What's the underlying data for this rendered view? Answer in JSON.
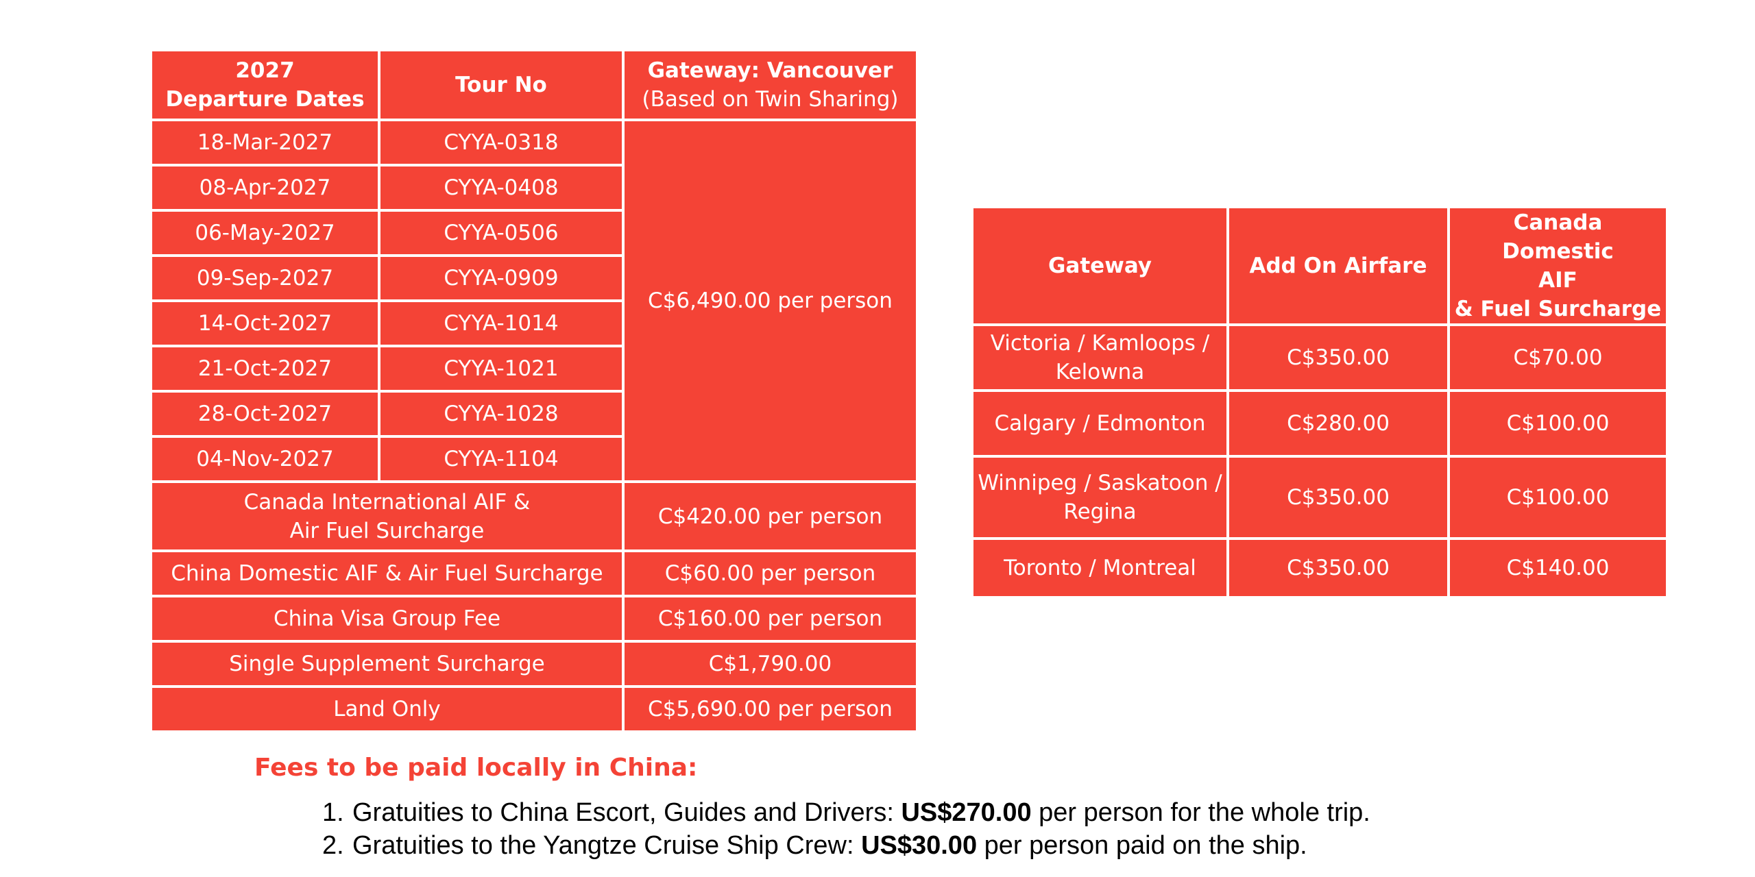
{
  "main_table": {
    "header": {
      "col1_line1": "2027",
      "col1_line2": "Departure Dates",
      "col2": "Tour No",
      "col3_line1": "Gateway: Vancouver",
      "col3_line2": "(Based on Twin Sharing)"
    },
    "rows": [
      {
        "date": "18-Mar-2027",
        "tour": "CYYA-0318"
      },
      {
        "date": "08-Apr-2027",
        "tour": "CYYA-0408"
      },
      {
        "date": "06-May-2027",
        "tour": "CYYA-0506"
      },
      {
        "date": "09-Sep-2027",
        "tour": "CYYA-0909"
      },
      {
        "date": "14-Oct-2027",
        "tour": "CYYA-1014"
      },
      {
        "date": "21-Oct-2027",
        "tour": "CYYA-1021"
      },
      {
        "date": "28-Oct-2027",
        "tour": "CYYA-1028"
      },
      {
        "date": "04-Nov-2027",
        "tour": "CYYA-1104"
      }
    ],
    "price": "C$6,490.00 per person",
    "fees": [
      {
        "label_line1": "Canada International AIF &",
        "label_line2": "Air Fuel Surcharge",
        "value": "C$420.00 per person"
      },
      {
        "label": "China Domestic AIF & Air Fuel Surcharge",
        "value": "C$60.00 per person"
      },
      {
        "label": "China Visa Group Fee",
        "value": "C$160.00 per person"
      },
      {
        "label": "Single Supplement Surcharge",
        "value": "C$1,790.00"
      },
      {
        "label": "Land Only",
        "value": "C$5,690.00 per person"
      }
    ]
  },
  "gateway_table": {
    "header": {
      "col1": "Gateway",
      "col2": "Add On Airfare",
      "col3_line1": "Canada Domestic",
      "col3_line2": "AIF",
      "col3_line3": "& Fuel Surcharge"
    },
    "rows": [
      {
        "gateway_line1": "Victoria / Kamloops /",
        "gateway_line2": "Kelowna",
        "airfare": "C$350.00",
        "surcharge": "C$70.00"
      },
      {
        "gateway_line1": "Calgary / Edmonton",
        "gateway_line2": "",
        "airfare": "C$280.00",
        "surcharge": "C$100.00"
      },
      {
        "gateway_line1": "Winnipeg / Saskatoon /",
        "gateway_line2": "Regina",
        "airfare": "C$350.00",
        "surcharge": "C$100.00"
      },
      {
        "gateway_line1": "Toronto / Montreal",
        "gateway_line2": "",
        "airfare": "C$350.00",
        "surcharge": "C$140.00"
      }
    ]
  },
  "local_fees": {
    "title": "Fees to be paid locally in China:",
    "items": [
      {
        "number": "1.",
        "text_before": "Gratuities to China Escort, Guides and Drivers: ",
        "amount": "US$270.00",
        "text_after": " per person for the whole trip."
      },
      {
        "number": "2.",
        "text_before": "Gratuities to the Yangtze Cruise Ship Crew: ",
        "amount": "US$30.00",
        "text_after": " per person paid on the ship."
      }
    ]
  },
  "colors": {
    "table_background": "#f44336",
    "table_text": "#ffffff",
    "fees_title": "#f44336",
    "body_text": "#000000"
  }
}
